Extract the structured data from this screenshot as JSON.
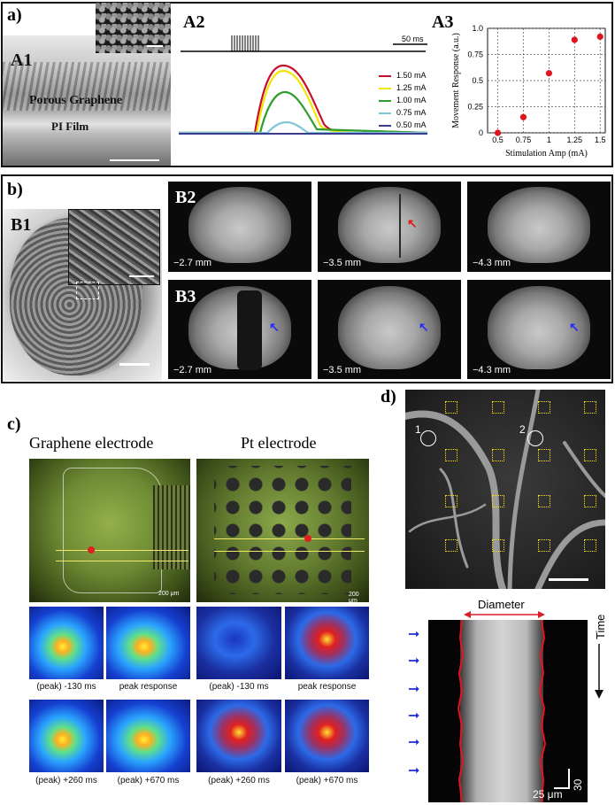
{
  "panels": {
    "a": {
      "letter": "a)",
      "a1": "A1",
      "a2": "A2",
      "a3": "A3",
      "porous_label": "Porous Graphene",
      "pi_label": "PI Film",
      "scale_ms": "50 ms",
      "legend": [
        {
          "label": "1.50 mA",
          "color": "#c8102e"
        },
        {
          "label": "1.25 mA",
          "color": "#f2e600"
        },
        {
          "label": "1.00 mA",
          "color": "#2e9e2e"
        },
        {
          "label": "0.75 mA",
          "color": "#7fc6d8"
        },
        {
          "label": "0.50 mA",
          "color": "#3b3b8f"
        }
      ]
    },
    "b": {
      "letter": "b)",
      "b1": "B1",
      "b2": "B2",
      "b3": "B3",
      "depths_row1": [
        "−2.7 mm",
        "−3.5 mm",
        "−4.3 mm"
      ],
      "depths_row2": [
        "−2.7 mm",
        "−3.5 mm",
        "−4.3 mm"
      ]
    },
    "c": {
      "letter": "c)",
      "graphene_title": "Graphene electrode",
      "pt_title": "Pt electrode",
      "scale": "200 μm",
      "captions_row1": [
        "(peak) -130 ms",
        "peak response",
        "(peak) -130 ms",
        "peak response"
      ],
      "captions_row2": [
        "(peak) +260 ms",
        "(peak) +670 ms",
        "(peak) +260 ms",
        "(peak) +670 ms"
      ]
    },
    "d": {
      "letter": "d)",
      "roi1": "1",
      "roi2": "2",
      "diameter": "Diameter",
      "time": "Time",
      "scale_time": "30 s",
      "scale_space": "25 μm"
    }
  },
  "chart_data": {
    "type": "scatter",
    "title": "",
    "xlabel": "Stimulation Amp (mA)",
    "ylabel": "Movement Response (a.u.)",
    "xlim": [
      0.4,
      1.55
    ],
    "ylim": [
      0,
      1.0
    ],
    "xticks": [
      "0.5",
      "0.75",
      "1",
      "1.25",
      "1.5"
    ],
    "yticks": [
      "0",
      "0.25",
      "0.5",
      "0.75",
      "1.0"
    ],
    "grid": true,
    "points": [
      {
        "x": 0.5,
        "y": 0.0
      },
      {
        "x": 0.75,
        "y": 0.15
      },
      {
        "x": 1.0,
        "y": 0.57
      },
      {
        "x": 1.25,
        "y": 0.89
      },
      {
        "x": 1.5,
        "y": 0.92
      }
    ],
    "color": "#e0141e"
  }
}
